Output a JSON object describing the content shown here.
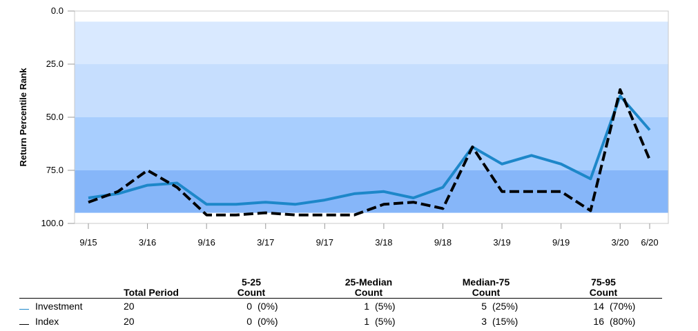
{
  "chart_data": {
    "type": "line",
    "ylabel": "Return Percentile Rank",
    "xlabel": "",
    "title": "",
    "y_inverted": true,
    "ylim": [
      0,
      100
    ],
    "yticks": [
      "0.0",
      "25.0",
      "50.0",
      "75.0",
      "100.0"
    ],
    "bands": [
      {
        "from": 5,
        "to": 25,
        "color": "#d9e9ff"
      },
      {
        "from": 25,
        "to": 50,
        "color": "#c6defe"
      },
      {
        "from": 50,
        "to": 75,
        "color": "#a8cefe"
      },
      {
        "from": 75,
        "to": 95,
        "color": "#86b6f9"
      }
    ],
    "x": [
      "9/15",
      "12/15",
      "3/16",
      "6/16",
      "9/16",
      "12/16",
      "3/17",
      "6/17",
      "9/17",
      "12/17",
      "3/18",
      "6/18",
      "9/18",
      "12/18",
      "3/19",
      "6/19",
      "9/19",
      "12/19",
      "3/20",
      "6/20"
    ],
    "xtick_labels": [
      "9/15",
      "3/16",
      "9/16",
      "3/17",
      "9/17",
      "3/18",
      "9/18",
      "3/19",
      "9/19",
      "3/20",
      "6/20"
    ],
    "series": [
      {
        "name": "Investment",
        "color": "#1d87c9",
        "dash": false,
        "values": [
          88,
          86,
          82,
          81,
          91,
          91,
          90,
          91,
          89,
          86,
          85,
          88,
          83,
          64,
          72,
          68,
          72,
          79,
          40,
          56
        ]
      },
      {
        "name": "Index",
        "color": "#000000",
        "dash": true,
        "values": [
          90,
          85,
          75,
          83,
          96,
          96,
          95,
          96,
          96,
          96,
          91,
          90,
          93,
          64,
          85,
          85,
          85,
          94,
          37,
          70
        ]
      }
    ]
  },
  "stats_table": {
    "headers": {
      "total": "Total Period",
      "q1_line1": "5-25",
      "q1_line2": "Count",
      "q2_line1": "25-Median",
      "q2_line2": "Count",
      "q3_line1": "Median-75",
      "q3_line2": "Count",
      "q4_line1": "75-95",
      "q4_line2": "Count"
    },
    "rows": [
      {
        "name": "Investment",
        "color": "#1d87c9",
        "total": "20",
        "q1": "0",
        "q1p": "(0%)",
        "q2": "1",
        "q2p": "(5%)",
        "q3": "5",
        "q3p": "(25%)",
        "q4": "14",
        "q4p": "(70%)"
      },
      {
        "name": "Index",
        "color": "#000000",
        "total": "20",
        "q1": "0",
        "q1p": "(0%)",
        "q2": "1",
        "q2p": "(5%)",
        "q3": "3",
        "q3p": "(15%)",
        "q4": "16",
        "q4p": "(80%)"
      }
    ]
  }
}
